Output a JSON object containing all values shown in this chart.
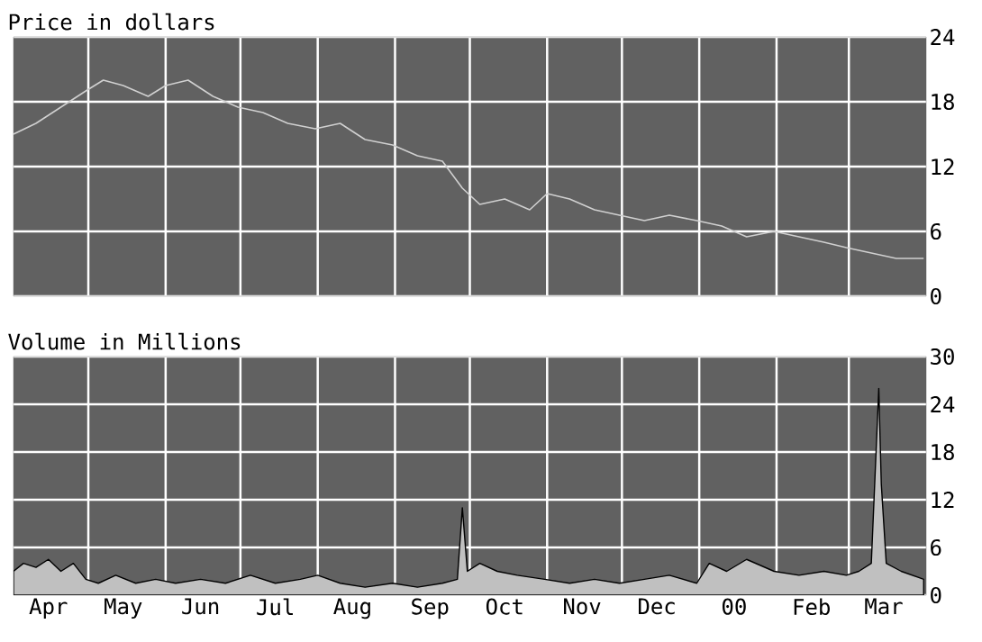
{
  "chart_data": [
    {
      "type": "line",
      "title": "Price in dollars",
      "x": [
        "1999-04-01",
        "1999-04-10",
        "1999-04-20",
        "1999-04-30",
        "1999-05-07",
        "1999-05-15",
        "1999-05-25",
        "1999-06-01",
        "1999-06-10",
        "1999-06-20",
        "1999-06-30",
        "1999-07-10",
        "1999-07-20",
        "1999-07-31",
        "1999-08-10",
        "1999-08-20",
        "1999-08-31",
        "1999-09-10",
        "1999-09-20",
        "1999-09-28",
        "1999-10-05",
        "1999-10-15",
        "1999-10-25",
        "1999-11-01",
        "1999-11-10",
        "1999-11-20",
        "1999-11-30",
        "1999-12-10",
        "1999-12-20",
        "1999-12-31",
        "2000-01-10",
        "2000-01-20",
        "2000-01-31",
        "2000-02-10",
        "2000-02-20",
        "2000-02-29",
        "2000-03-10",
        "2000-03-20",
        "2000-03-31"
      ],
      "series": [
        {
          "color": "#d0d0d0",
          "values": [
            15,
            16,
            17.5,
            19,
            20,
            19.5,
            18.5,
            19.5,
            20,
            18.5,
            17.5,
            17,
            16,
            15.5,
            16,
            14.5,
            14,
            13,
            12.5,
            10,
            8.5,
            9,
            8,
            9.5,
            9,
            8,
            7.5,
            7,
            7.5,
            7,
            6.5,
            5.5,
            6,
            5.5,
            5,
            4.5,
            4,
            3.5,
            3.5
          ]
        }
      ],
      "xlim": [
        "1999-04-01",
        "2000-04-01"
      ],
      "xticks": [
        {
          "value": "1999-05-01",
          "label": null
        },
        {
          "value": "1999-06-01",
          "label": null
        },
        {
          "value": "1999-07-01",
          "label": null
        },
        {
          "value": "1999-08-01",
          "label": null
        },
        {
          "value": "1999-09-01",
          "label": null
        },
        {
          "value": "1999-10-01",
          "label": null
        },
        {
          "value": "1999-11-01",
          "label": null
        },
        {
          "value": "1999-12-01",
          "label": null
        },
        {
          "value": "2000-01-01",
          "label": null
        },
        {
          "value": "2000-02-01",
          "label": null
        },
        {
          "value": "2000-03-01",
          "label": null
        }
      ],
      "ylim": [
        0,
        24
      ],
      "yticks": [
        0,
        6,
        12,
        18,
        24
      ],
      "grid": true,
      "tick_labels": "y"
    },
    {
      "type": "area",
      "title": "Volume in Millions",
      "x": [
        "1999-04-01",
        "1999-04-05",
        "1999-04-10",
        "1999-04-15",
        "1999-04-20",
        "1999-04-25",
        "1999-04-30",
        "1999-05-05",
        "1999-05-12",
        "1999-05-20",
        "1999-05-28",
        "1999-06-05",
        "1999-06-15",
        "1999-06-25",
        "1999-07-05",
        "1999-07-15",
        "1999-07-25",
        "1999-08-01",
        "1999-08-10",
        "1999-08-20",
        "1999-08-31",
        "1999-09-10",
        "1999-09-20",
        "1999-09-26",
        "1999-09-28",
        "1999-09-30",
        "1999-10-05",
        "1999-10-12",
        "1999-10-20",
        "1999-10-31",
        "1999-11-10",
        "1999-11-20",
        "1999-11-30",
        "1999-12-10",
        "1999-12-20",
        "1999-12-31",
        "2000-01-05",
        "2000-01-12",
        "2000-01-20",
        "2000-01-31",
        "2000-02-10",
        "2000-02-20",
        "2000-02-29",
        "2000-03-05",
        "2000-03-10",
        "2000-03-13",
        "2000-03-14",
        "2000-03-16",
        "2000-03-22",
        "2000-03-31"
      ],
      "series": [
        {
          "color": "#c0c0c0",
          "values": [
            3,
            4,
            3.5,
            4.5,
            3,
            4,
            2,
            1.5,
            2.5,
            1.5,
            2,
            1.5,
            2,
            1.5,
            2.5,
            1.5,
            2,
            2.5,
            1.5,
            1,
            1.5,
            1,
            1.5,
            2,
            11,
            3,
            4,
            3,
            2.5,
            2,
            1.5,
            2,
            1.5,
            2,
            2.5,
            1.5,
            4,
            3,
            4.5,
            3,
            2.5,
            3,
            2.5,
            3,
            4,
            26,
            14,
            4,
            3,
            2
          ]
        }
      ],
      "xlim": [
        "1999-04-01",
        "2000-04-01"
      ],
      "xticks": [
        {
          "value": "1999-04-15",
          "label": "Apr"
        },
        {
          "value": "1999-05-01",
          "label": null
        },
        {
          "value": "1999-05-15",
          "label": "May"
        },
        {
          "value": "1999-06-01",
          "label": null
        },
        {
          "value": "1999-06-15",
          "label": "Jun"
        },
        {
          "value": "1999-07-01",
          "label": null
        },
        {
          "value": "1999-07-15",
          "label": "Jul"
        },
        {
          "value": "1999-08-01",
          "label": null
        },
        {
          "value": "1999-08-15",
          "label": "Aug"
        },
        {
          "value": "1999-09-01",
          "label": null
        },
        {
          "value": "1999-09-15",
          "label": "Sep"
        },
        {
          "value": "1999-10-01",
          "label": null
        },
        {
          "value": "1999-10-15",
          "label": "Oct"
        },
        {
          "value": "1999-11-01",
          "label": null
        },
        {
          "value": "1999-11-15",
          "label": "Nov"
        },
        {
          "value": "1999-12-01",
          "label": null
        },
        {
          "value": "1999-12-15",
          "label": "Dec"
        },
        {
          "value": "2000-01-01",
          "label": null
        },
        {
          "value": "2000-01-15",
          "label": "00"
        },
        {
          "value": "2000-02-01",
          "label": null
        },
        {
          "value": "2000-02-15",
          "label": "Feb"
        },
        {
          "value": "2000-03-01",
          "label": null
        },
        {
          "value": "2000-03-15",
          "label": "Mar"
        }
      ],
      "ylim": [
        0,
        30
      ],
      "yticks": [
        0,
        6,
        12,
        18,
        24,
        30
      ],
      "grid": true
    }
  ]
}
